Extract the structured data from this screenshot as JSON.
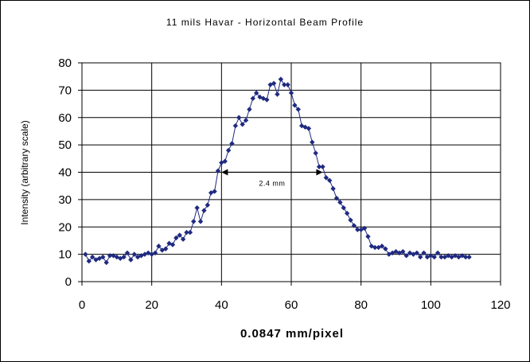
{
  "chart_data": {
    "type": "scatter",
    "title": "11 mils Havar - Horizontal Beam Profile",
    "xlabel": "0.0847 mm/pixel",
    "ylabel": "Intensity (arbitrary scale)",
    "xlim": [
      0,
      120
    ],
    "ylim": [
      0,
      80
    ],
    "x_ticks": [
      0,
      20,
      40,
      60,
      80,
      100,
      120
    ],
    "y_ticks": [
      0,
      10,
      20,
      30,
      40,
      50,
      60,
      70,
      80
    ],
    "grid": {
      "x": true,
      "y": true
    },
    "legend": "none",
    "marker": "diamond",
    "line": true,
    "color": "#1f2a80",
    "annotation": {
      "text": "2.4 mm",
      "x_start": 40,
      "x_end": 69,
      "y": 40
    },
    "series": [
      {
        "x": [
          1,
          2,
          3,
          4,
          5,
          6,
          7,
          8,
          9,
          10,
          11,
          12,
          13,
          14,
          15,
          16,
          17,
          18,
          19,
          20,
          21,
          22,
          23,
          24,
          25,
          26,
          27,
          28,
          29,
          30,
          31,
          32,
          33,
          34,
          35,
          36,
          37,
          38,
          39,
          40,
          41,
          42,
          43,
          44,
          45,
          46,
          47,
          48,
          49,
          50,
          51,
          52,
          53,
          54,
          55,
          56,
          57,
          58,
          59,
          60,
          61,
          62,
          63,
          64,
          65,
          66,
          67,
          68,
          69,
          70,
          71,
          72,
          73,
          74,
          75,
          76,
          77,
          78,
          79,
          80,
          81,
          82,
          83,
          84,
          85,
          86,
          87,
          88,
          89,
          90,
          91,
          92,
          93,
          94,
          95,
          96,
          97,
          98,
          99,
          100,
          101,
          102,
          103,
          104,
          105,
          106,
          107,
          108,
          109,
          110,
          111
        ],
        "y": [
          10,
          7.5,
          9,
          8,
          8.5,
          9,
          7,
          9.5,
          9.5,
          9,
          8.5,
          9,
          10.5,
          8,
          10,
          9,
          9.5,
          10,
          10.5,
          10,
          10.5,
          13,
          11.5,
          12,
          14,
          13.5,
          16,
          17,
          15.5,
          18,
          18,
          22,
          27,
          22,
          26,
          28,
          32.5,
          33,
          40.5,
          43.5,
          44,
          48,
          50.5,
          57,
          60,
          57.5,
          59,
          63,
          67,
          69,
          67.5,
          67,
          66.5,
          72,
          72.5,
          68.5,
          74,
          72,
          72,
          69,
          64.5,
          63,
          57,
          56.5,
          56,
          51,
          47,
          42,
          42,
          38,
          37,
          34,
          30.5,
          29,
          27,
          25,
          22.5,
          20.5,
          19,
          19,
          19.5,
          16.5,
          13,
          12.5,
          12.5,
          13,
          12,
          10,
          10.5,
          11,
          10.5,
          11,
          9.5,
          10.5,
          10,
          10.5,
          9,
          10.5,
          9,
          9.5,
          9,
          10.5,
          9,
          9,
          9.5,
          9,
          9.5,
          9,
          9.5,
          9,
          9
        ]
      }
    ]
  }
}
